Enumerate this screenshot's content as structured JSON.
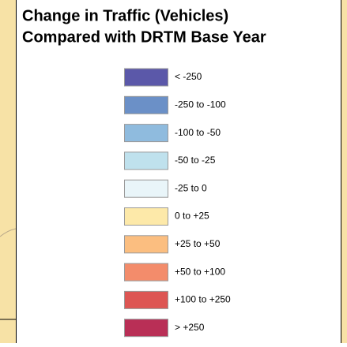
{
  "legend": {
    "title": [
      "Change in Traffic (Vehicles)",
      "Compared with DRTM Base Year"
    ],
    "items": [
      {
        "label": "< -250",
        "color": "#5b58a9"
      },
      {
        "label": "-250 to -100",
        "color": "#6b90c7"
      },
      {
        "label": "-100 to -50",
        "color": "#8fbbde"
      },
      {
        "label": "-50 to -25",
        "color": "#bfe1ed"
      },
      {
        "label": "-25 to 0",
        "color": "#e9f5f9"
      },
      {
        "label": "0 to +25",
        "color": "#fde9a9"
      },
      {
        "label": "+25 to +50",
        "color": "#fbbe80"
      },
      {
        "label": "+50 to +100",
        "color": "#f38c6b"
      },
      {
        "label": "+100 to +250",
        "color": "#dd5553"
      },
      {
        "label": "> +250",
        "color": "#b92f56"
      }
    ]
  }
}
